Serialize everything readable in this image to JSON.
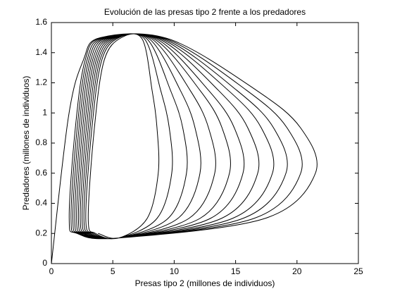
{
  "chart_data": {
    "type": "line",
    "title": "Evolución de las presas tipo 2 frente a los predadores",
    "x_label": "Presas tipo 2 (millones de individuos)",
    "y_label": "Predadores (millones de individuos)",
    "xlim": [
      0,
      25
    ],
    "ylim": [
      0,
      1.6
    ],
    "xticks": [
      0,
      5,
      10,
      15,
      20,
      25
    ],
    "yticks": [
      0,
      0.2,
      0.4,
      0.6,
      0.8,
      1,
      1.2,
      1.4,
      1.6
    ],
    "grid": false,
    "series": [
      {
        "color": "#000000",
        "x": [
          0,
          1.4,
          2.6,
          4.0,
          9.6,
          16.7,
          20.3,
          21.5,
          17.4,
          5.5,
          2.1,
          1.45,
          1.95,
          2.75,
          4.15,
          9.4,
          15.9,
          19.2,
          20.3,
          16.5,
          5.5,
          2.25,
          1.6,
          2.1,
          2.9,
          4.3,
          9.2,
          15.1,
          18.1,
          19.1,
          15.6,
          5.5,
          2.4,
          1.75,
          2.25,
          3.05,
          4.45,
          9.0,
          14.4,
          17.1,
          18.0,
          14.75,
          5.5,
          2.55,
          1.9,
          2.4,
          3.2,
          4.6,
          8.8,
          13.6,
          16.0,
          16.8,
          13.85,
          5.5,
          2.7,
          2.05,
          2.55,
          3.35,
          4.75,
          8.6,
          12.8,
          14.9,
          15.6,
          12.95,
          5.5,
          2.85,
          2.2,
          2.7,
          3.5,
          4.9,
          8.4,
          12.1,
          13.9,
          14.5,
          12.1,
          5.5,
          3.0,
          2.35,
          2.85,
          3.65,
          5.05,
          8.2,
          11.3,
          12.8,
          13.3,
          11.2,
          5.5,
          3.15,
          2.5,
          3.0,
          3.8,
          5.2,
          8.0,
          10.5,
          11.7,
          12.1,
          10.3,
          5.5,
          3.3,
          2.65,
          3.15,
          3.95,
          5.35,
          7.8,
          9.7,
          10.7,
          11.0,
          9.5,
          5.5,
          3.45,
          2.8,
          3.3,
          4.1,
          5.5,
          7.6,
          8.9,
          9.6,
          9.8,
          8.6,
          5.5,
          3.6,
          3.0,
          3.5,
          4.3,
          5.7,
          7.4,
          8.2,
          8.6,
          8.7,
          7.8,
          5.5,
          3.8
        ],
        "values": [
          0,
          0.98,
          1.35,
          1.5,
          1.49,
          1.15,
          0.9,
          0.6,
          0.3,
          0.17,
          0.2,
          0.3,
          0.9,
          1.35,
          1.5,
          1.49,
          1.15,
          0.9,
          0.6,
          0.3,
          0.17,
          0.2,
          0.3,
          0.9,
          1.35,
          1.5,
          1.49,
          1.15,
          0.9,
          0.6,
          0.3,
          0.17,
          0.2,
          0.3,
          0.9,
          1.35,
          1.5,
          1.49,
          1.15,
          0.9,
          0.6,
          0.3,
          0.17,
          0.2,
          0.3,
          0.9,
          1.35,
          1.5,
          1.49,
          1.15,
          0.9,
          0.6,
          0.3,
          0.17,
          0.2,
          0.3,
          0.9,
          1.35,
          1.5,
          1.49,
          1.15,
          0.9,
          0.6,
          0.3,
          0.17,
          0.2,
          0.3,
          0.9,
          1.35,
          1.5,
          1.49,
          1.15,
          0.9,
          0.6,
          0.3,
          0.17,
          0.2,
          0.3,
          0.9,
          1.35,
          1.5,
          1.49,
          1.15,
          0.9,
          0.6,
          0.3,
          0.17,
          0.2,
          0.3,
          0.9,
          1.35,
          1.5,
          1.49,
          1.15,
          0.9,
          0.6,
          0.3,
          0.17,
          0.2,
          0.3,
          0.9,
          1.35,
          1.5,
          1.49,
          1.15,
          0.9,
          0.6,
          0.3,
          0.17,
          0.2,
          0.3,
          0.9,
          1.35,
          1.5,
          1.49,
          1.15,
          0.9,
          0.6,
          0.3,
          0.17,
          0.2,
          0.3,
          0.9,
          1.35,
          1.5,
          1.49,
          1.15,
          0.9,
          0.6,
          0.3,
          0.17,
          0.2
        ]
      }
    ]
  }
}
